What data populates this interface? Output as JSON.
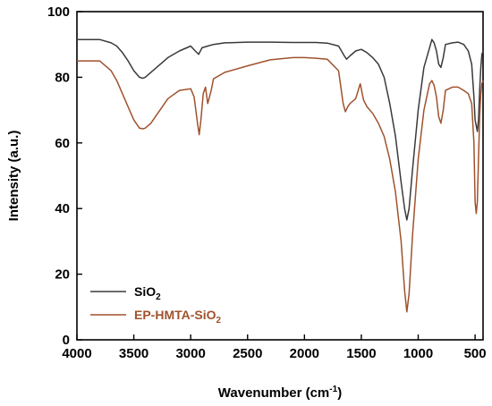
{
  "chart_data": {
    "type": "line",
    "xlabel": "Wavenumber (cm",
    "xlabel_sup": "-1",
    "xlabel_close": ")",
    "ylabel": "Intensity (a.u.)",
    "xlim": [
      4000,
      430
    ],
    "ylim": [
      0,
      100
    ],
    "x_reversed": true,
    "x_ticks": [
      4000,
      3500,
      3000,
      2500,
      2000,
      1500,
      1000,
      500
    ],
    "y_ticks": [
      0,
      20,
      40,
      60,
      80,
      100
    ],
    "grid": false,
    "legend_position": "bottom-left",
    "series": [
      {
        "name": "SiO",
        "name_sub": "2",
        "color": "#3a3a3a",
        "x": [
          4000,
          3800,
          3700,
          3650,
          3600,
          3550,
          3500,
          3450,
          3420,
          3400,
          3350,
          3300,
          3250,
          3200,
          3100,
          3000,
          2960,
          2930,
          2900,
          2850,
          2800,
          2700,
          2500,
          2300,
          2100,
          2000,
          1900,
          1800,
          1700,
          1650,
          1630,
          1600,
          1550,
          1500,
          1450,
          1400,
          1350,
          1300,
          1250,
          1200,
          1150,
          1120,
          1100,
          1080,
          1050,
          1000,
          950,
          900,
          880,
          860,
          840,
          820,
          800,
          780,
          760,
          700,
          650,
          600,
          560,
          530,
          510,
          500,
          480,
          470,
          460,
          450,
          440,
          430
        ],
        "values": [
          91.5,
          91.5,
          90.5,
          89.5,
          87.5,
          85,
          82,
          80,
          79.7,
          80,
          81.5,
          83,
          84.5,
          86,
          88,
          89.5,
          88,
          87,
          89,
          89.5,
          90,
          90.5,
          90.7,
          90.7,
          90.6,
          90.6,
          90.6,
          90.4,
          89.5,
          86.5,
          85.5,
          86.5,
          88,
          88.5,
          87.5,
          86,
          84,
          80,
          72,
          62,
          48,
          40,
          36.5,
          40,
          52,
          70,
          83,
          89,
          91.5,
          90.5,
          88,
          84,
          83,
          86,
          90,
          90.5,
          90.7,
          90,
          88,
          84,
          74,
          67,
          63.5,
          67,
          76,
          83,
          87,
          88
        ]
      },
      {
        "name": "EP-HMTA-SiO",
        "name_sub": "2",
        "color": "#a0522d",
        "x": [
          4000,
          3800,
          3700,
          3650,
          3600,
          3550,
          3500,
          3450,
          3420,
          3400,
          3350,
          3300,
          3250,
          3200,
          3100,
          3000,
          2970,
          2940,
          2925,
          2910,
          2890,
          2870,
          2850,
          2820,
          2800,
          2700,
          2500,
          2300,
          2100,
          2000,
          1900,
          1800,
          1700,
          1660,
          1640,
          1620,
          1600,
          1550,
          1510,
          1480,
          1450,
          1400,
          1350,
          1300,
          1250,
          1200,
          1150,
          1120,
          1100,
          1080,
          1050,
          1000,
          950,
          900,
          880,
          860,
          840,
          820,
          800,
          780,
          760,
          700,
          650,
          600,
          560,
          530,
          510,
          500,
          490,
          480,
          470,
          460,
          450,
          440,
          430
        ],
        "values": [
          85,
          85,
          82,
          79,
          75,
          71,
          67,
          64.5,
          64.3,
          64.5,
          66,
          68.5,
          71,
          73.5,
          76,
          76.5,
          74,
          66,
          62.5,
          67,
          75,
          77,
          72,
          76,
          79.5,
          81.5,
          83.5,
          85.3,
          86,
          86,
          85.8,
          85.5,
          82,
          72,
          69.5,
          71,
          72,
          73.5,
          78,
          73,
          71,
          69,
          66,
          62,
          55,
          45,
          30,
          15,
          8.5,
          14,
          32,
          55,
          70,
          78,
          79,
          77.5,
          74,
          68,
          66,
          70,
          76,
          77,
          77,
          76,
          75,
          72,
          60,
          42,
          38.5,
          42,
          55,
          68,
          75,
          78,
          79
        ]
      }
    ]
  }
}
